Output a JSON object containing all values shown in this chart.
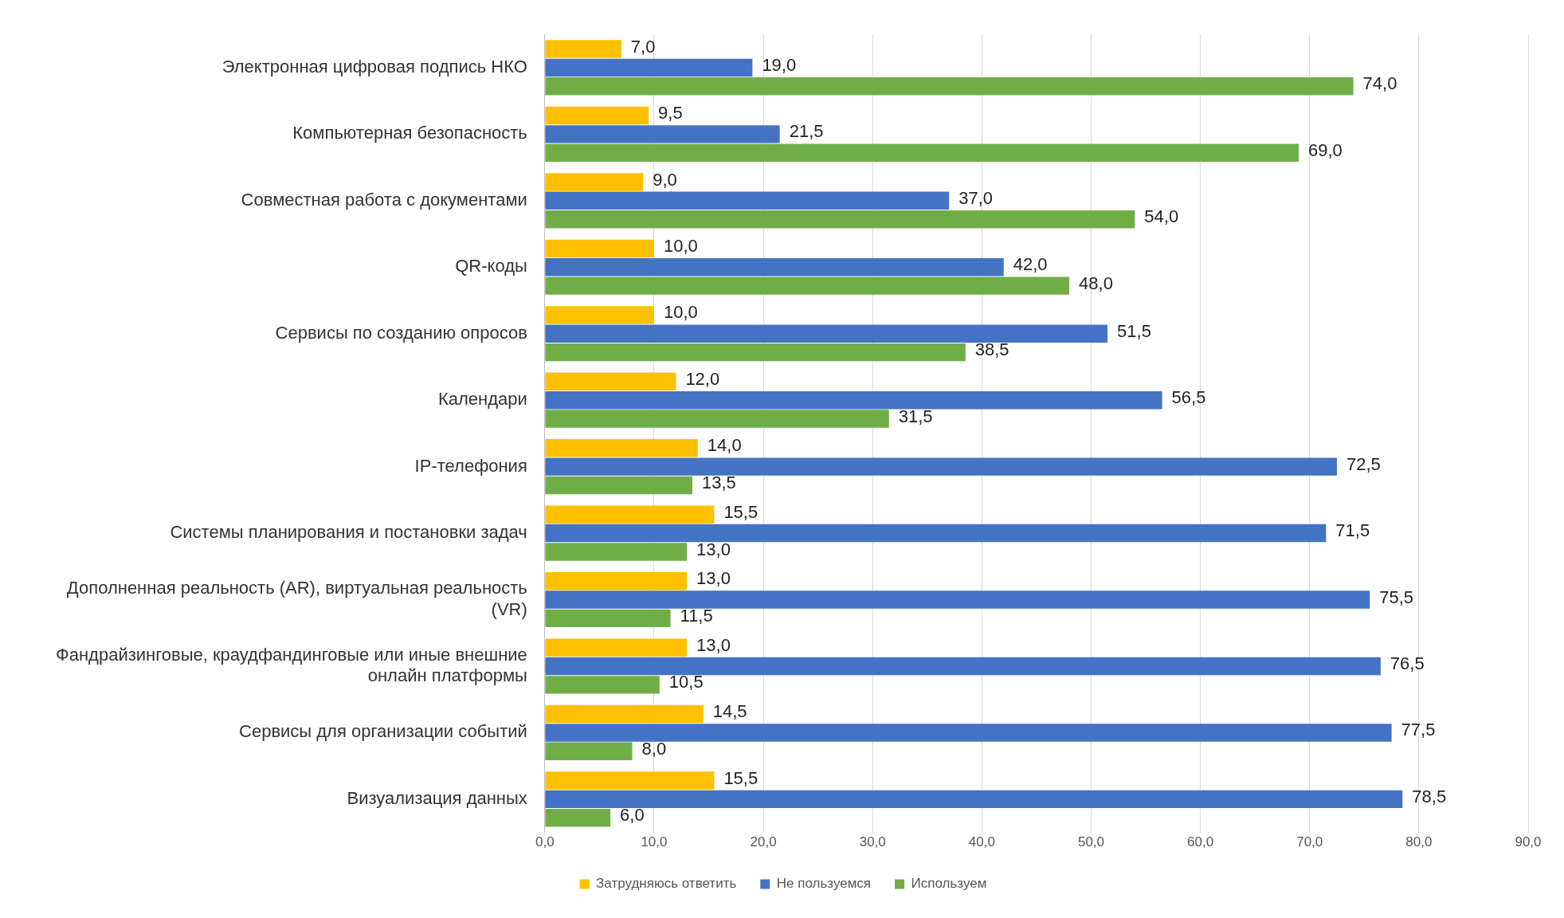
{
  "chart_data": {
    "type": "bar",
    "orientation": "horizontal",
    "categories": [
      "Электронная цифровая подпись НКО",
      "Компьютерная безопасность",
      "Совместная работа с документами",
      "QR-коды",
      "Сервисы по созданию опросов",
      "Календари",
      "IP-телефония",
      "Системы планирования и постановки задач",
      "Дополненная реальность (AR), виртуальная реальность (VR)",
      "Фандрайзинговые, краудфандинговые или иные внешние онлайн платформы",
      "Сервисы для организации событий",
      "Визуализация данных"
    ],
    "series": [
      {
        "name": "Затрудняюсь ответить",
        "color": "#ffc000",
        "values": [
          7.0,
          9.5,
          9.0,
          10.0,
          10.0,
          12.0,
          14.0,
          15.5,
          13.0,
          13.0,
          14.5,
          15.5
        ],
        "value_labels": [
          "7,0",
          "9,5",
          "9,0",
          "10,0",
          "10,0",
          "12,0",
          "14,0",
          "15,5",
          "13,0",
          "13,0",
          "14,5",
          "15,5"
        ]
      },
      {
        "name": "Не пользуемся",
        "color": "#4472c4",
        "values": [
          19.0,
          21.5,
          37.0,
          42.0,
          51.5,
          56.5,
          72.5,
          71.5,
          75.5,
          76.5,
          77.5,
          78.5
        ],
        "value_labels": [
          "19,0",
          "21,5",
          "37,0",
          "42,0",
          "51,5",
          "56,5",
          "72,5",
          "71,5",
          "75,5",
          "76,5",
          "77,5",
          "78,5"
        ]
      },
      {
        "name": "Используем",
        "color": "#70ad47",
        "values": [
          74.0,
          69.0,
          54.0,
          48.0,
          38.5,
          31.5,
          13.5,
          13.0,
          11.5,
          10.5,
          8.0,
          6.0
        ],
        "value_labels": [
          "74,0",
          "69,0",
          "54,0",
          "48,0",
          "38,5",
          "31,5",
          "13,5",
          "13,0",
          "11,5",
          "10,5",
          "8,0",
          "6,0"
        ]
      }
    ],
    "xlim": [
      0,
      90
    ],
    "xticks": [
      {
        "value": 0,
        "label": "0,0"
      },
      {
        "value": 10,
        "label": "10,0"
      },
      {
        "value": 20,
        "label": "20,0"
      },
      {
        "value": 30,
        "label": "30,0"
      },
      {
        "value": 40,
        "label": "40,0"
      },
      {
        "value": 50,
        "label": "50,0"
      },
      {
        "value": 60,
        "label": "60,0"
      },
      {
        "value": 70,
        "label": "70,0"
      },
      {
        "value": 80,
        "label": "80,0"
      },
      {
        "value": 90,
        "label": "90,0"
      }
    ],
    "grid": "x",
    "legend": "bottom"
  }
}
